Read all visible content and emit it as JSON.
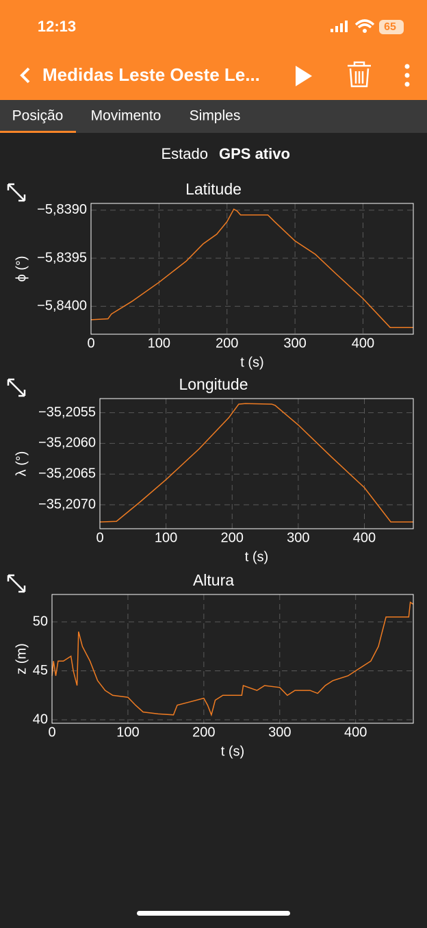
{
  "status_bar": {
    "time": "12:13",
    "battery": "65"
  },
  "header": {
    "title": "Medidas Leste Oeste Le..."
  },
  "tabs": [
    "Posição",
    "Movimento",
    "Simples"
  ],
  "status": {
    "label": "Estado",
    "value": "GPS ativo"
  },
  "chart_data": [
    {
      "type": "line",
      "title": "Latitude",
      "x_label": "t (s)",
      "y_label": "ϕ (°)",
      "color": "#f07c22",
      "grid": true,
      "xlim": [
        0,
        474
      ],
      "ylim": [
        -5.84029,
        -5.83893
      ],
      "xticks": [
        0,
        100,
        200,
        300,
        400
      ],
      "yticks": [
        {
          "value": -5.839,
          "label": "−5,8390"
        },
        {
          "value": -5.8395,
          "label": "−5,8395"
        },
        {
          "value": -5.84,
          "label": "−5,8400"
        }
      ],
      "x": [
        0,
        25,
        30,
        60,
        100,
        140,
        165,
        185,
        200,
        210,
        215,
        220,
        260,
        270,
        300,
        330,
        360,
        400,
        440,
        474
      ],
      "values": [
        -5.84014,
        -5.84013,
        -5.84008,
        -5.83995,
        -5.83975,
        -5.83953,
        -5.83935,
        -5.83925,
        -5.83912,
        -5.83899,
        -5.83901,
        -5.83905,
        -5.83905,
        -5.83912,
        -5.83932,
        -5.83946,
        -5.83966,
        -5.83992,
        -5.84022,
        -5.84022
      ]
    },
    {
      "type": "line",
      "title": "Longitude",
      "x_label": "t (s)",
      "y_label": "λ (°)",
      "color": "#f07c22",
      "grid": true,
      "xlim": [
        0,
        474
      ],
      "ylim": [
        -35.20739,
        -35.20527
      ],
      "xticks": [
        0,
        100,
        200,
        300,
        400
      ],
      "yticks": [
        {
          "value": -35.2055,
          "label": "−35,2055"
        },
        {
          "value": -35.206,
          "label": "−35,2060"
        },
        {
          "value": -35.2065,
          "label": "−35,2065"
        },
        {
          "value": -35.207,
          "label": "−35,2070"
        }
      ],
      "x": [
        0,
        25,
        60,
        100,
        150,
        195,
        210,
        220,
        260,
        265,
        300,
        350,
        400,
        440,
        474
      ],
      "values": [
        -35.20728,
        -35.20727,
        -35.20696,
        -35.20659,
        -35.20609,
        -35.20558,
        -35.20536,
        -35.20535,
        -35.20536,
        -35.20538,
        -35.2057,
        -35.20622,
        -35.20672,
        -35.20728,
        -35.20728
      ]
    },
    {
      "type": "line",
      "title": "Altura",
      "x_label": "t (s)",
      "y_label": "z (m)",
      "color": "#f07c22",
      "grid": true,
      "xlim": [
        0,
        476
      ],
      "ylim": [
        39.65,
        52.8
      ],
      "xticks": [
        0,
        100,
        200,
        300,
        400
      ],
      "yticks": [
        40,
        45,
        50
      ],
      "x": [
        0,
        2,
        5,
        8,
        15,
        25,
        28,
        33,
        35,
        40,
        50,
        60,
        70,
        80,
        100,
        110,
        120,
        140,
        160,
        165,
        180,
        200,
        205,
        210,
        215,
        225,
        250,
        252,
        270,
        280,
        300,
        310,
        320,
        340,
        350,
        360,
        370,
        390,
        400,
        420,
        430,
        440,
        470,
        472,
        476
      ],
      "values": [
        44.5,
        46,
        44.5,
        46,
        46,
        46.5,
        45,
        43.5,
        49,
        47.5,
        46,
        44,
        43,
        42.5,
        42.3,
        41.5,
        40.8,
        40.6,
        40.5,
        41.5,
        41.8,
        42.2,
        41.5,
        40.5,
        42,
        42.5,
        42.5,
        43.5,
        43,
        43.5,
        43.3,
        42.5,
        43,
        43,
        42.7,
        43.5,
        44,
        44.5,
        45,
        46,
        47.5,
        50.5,
        50.5,
        52,
        51.8
      ]
    }
  ]
}
